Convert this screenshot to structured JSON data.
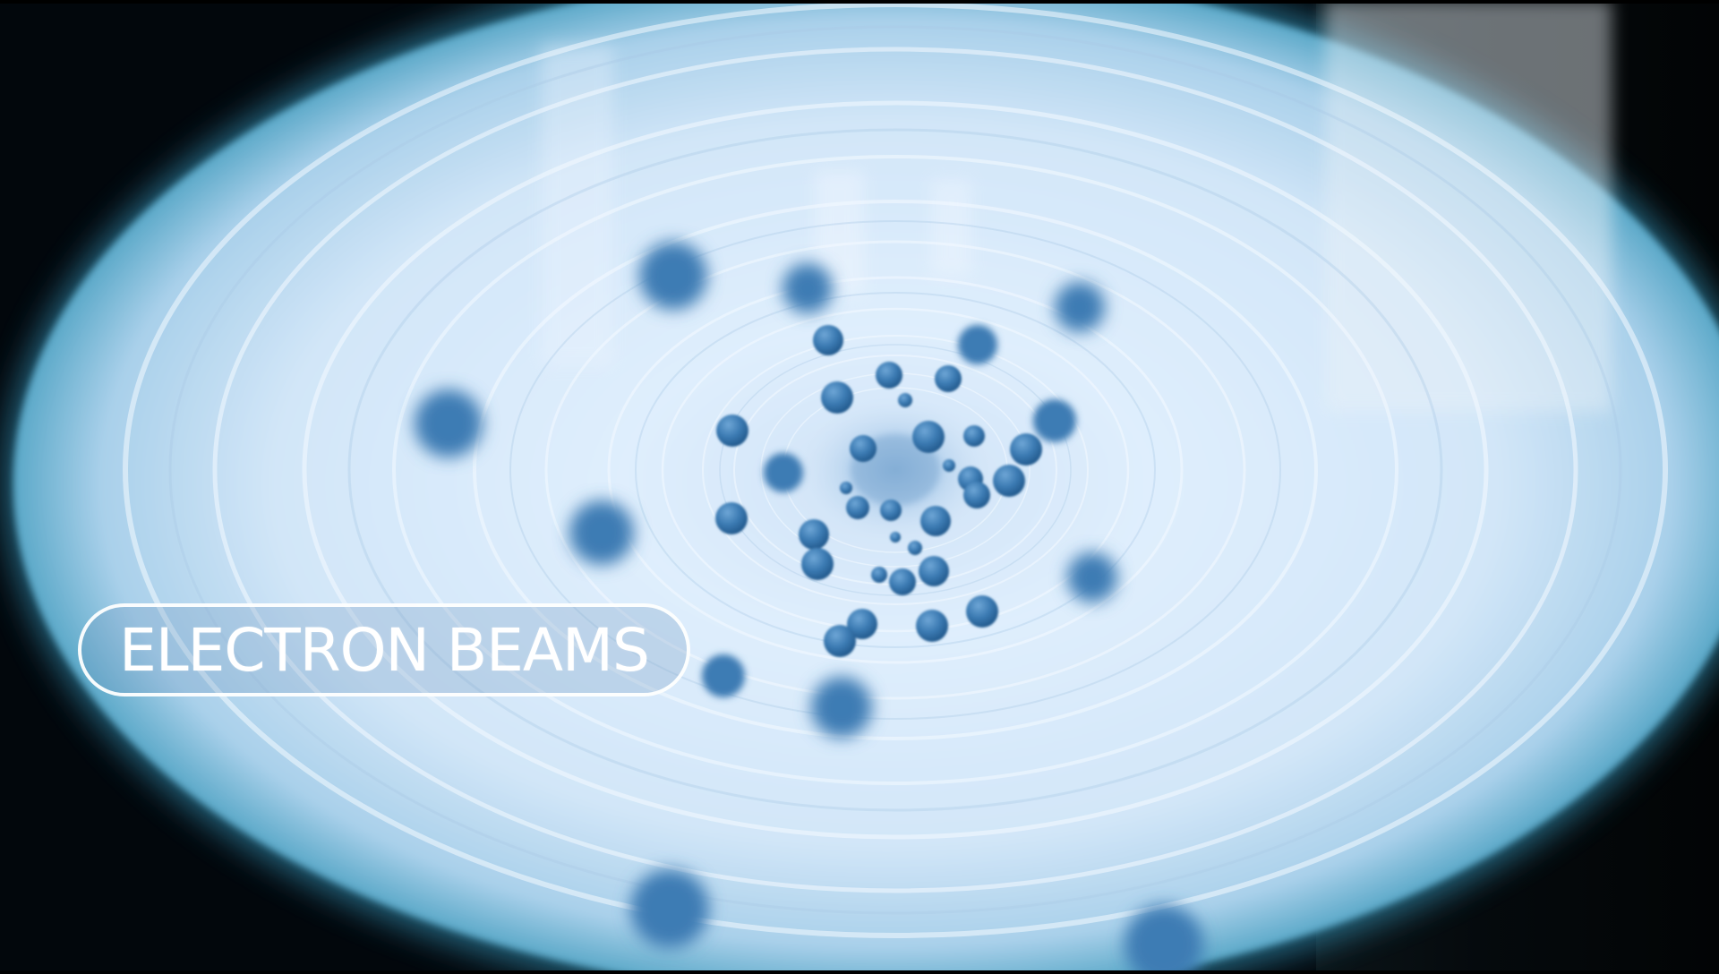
{
  "caption": {
    "text": "ELECTRON BEAMS"
  },
  "colors": {
    "tunnel_light": "#dbeafb",
    "tunnel_glow": "#bcd6ef",
    "particle": "#3f7fb6",
    "particle_dark": "#2d6aa1",
    "background_dark": "#02070c"
  }
}
